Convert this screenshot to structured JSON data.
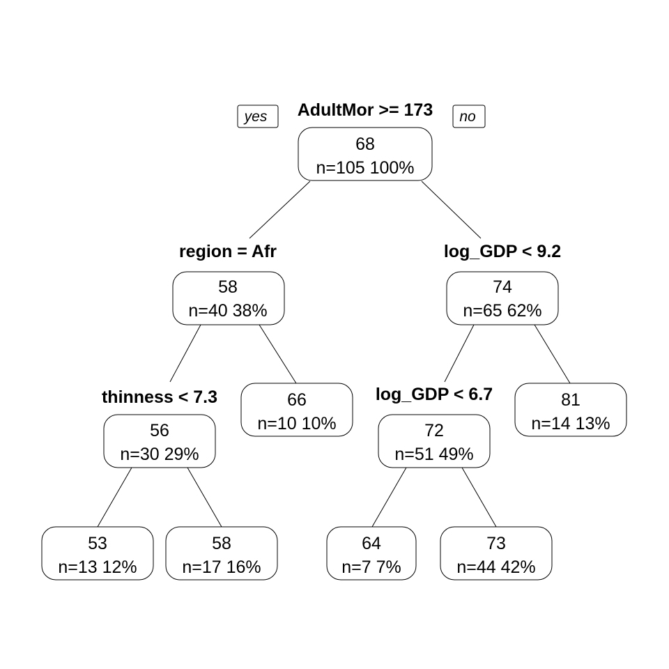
{
  "tree": {
    "yes_label": "yes",
    "no_label": "no",
    "nodes": {
      "root": {
        "split": "AdultMor >= 173",
        "value": "68",
        "count": "n=105  100%"
      },
      "left": {
        "split": "region = Afr",
        "value": "58",
        "count": "n=40  38%"
      },
      "right": {
        "split": "log_GDP < 9.2",
        "value": "74",
        "count": "n=65  62%"
      },
      "ll": {
        "split": "thinness < 7.3",
        "value": "56",
        "count": "n=30  29%"
      },
      "lr": {
        "value": "66",
        "count": "n=10  10%"
      },
      "rl": {
        "split": "log_GDP < 6.7",
        "value": "72",
        "count": "n=51  49%"
      },
      "rr": {
        "value": "81",
        "count": "n=14  13%"
      },
      "lll": {
        "value": "53",
        "count": "n=13  12%"
      },
      "llr": {
        "value": "58",
        "count": "n=17  16%"
      },
      "rll": {
        "value": "64",
        "count": "n=7  7%"
      },
      "rlr": {
        "value": "73",
        "count": "n=44  42%"
      }
    }
  }
}
